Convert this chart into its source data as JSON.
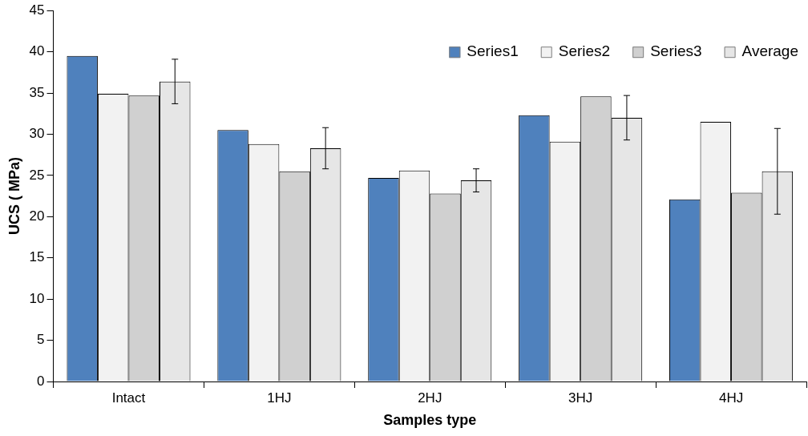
{
  "chart_data": {
    "type": "bar",
    "xlabel": "Samples type",
    "ylabel": "UCS ( MPa)",
    "categories": [
      "Intact",
      "1HJ",
      "2HJ",
      "3HJ",
      "4HJ"
    ],
    "series": [
      {
        "name": "Series1",
        "color": "#4f81bd",
        "values": [
          39.5,
          30.5,
          24.7,
          32.3,
          22.1
        ]
      },
      {
        "name": "Series2",
        "color": "#f2f2f2",
        "values": [
          34.9,
          28.8,
          25.6,
          29.1,
          31.5
        ]
      },
      {
        "name": "Series3",
        "color": "#d0d0d0",
        "values": [
          34.7,
          25.5,
          22.8,
          34.6,
          22.9
        ]
      },
      {
        "name": "Average",
        "color": "#e6e6e6",
        "values": [
          36.4,
          28.3,
          24.4,
          32.0,
          25.5
        ],
        "errors": [
          2.7,
          2.5,
          1.4,
          2.7,
          5.2
        ]
      }
    ],
    "ylim": [
      0,
      45
    ],
    "yticks": [
      0,
      5,
      10,
      15,
      20,
      25,
      30,
      35,
      40,
      45
    ],
    "grid": false,
    "legend": "top right"
  }
}
